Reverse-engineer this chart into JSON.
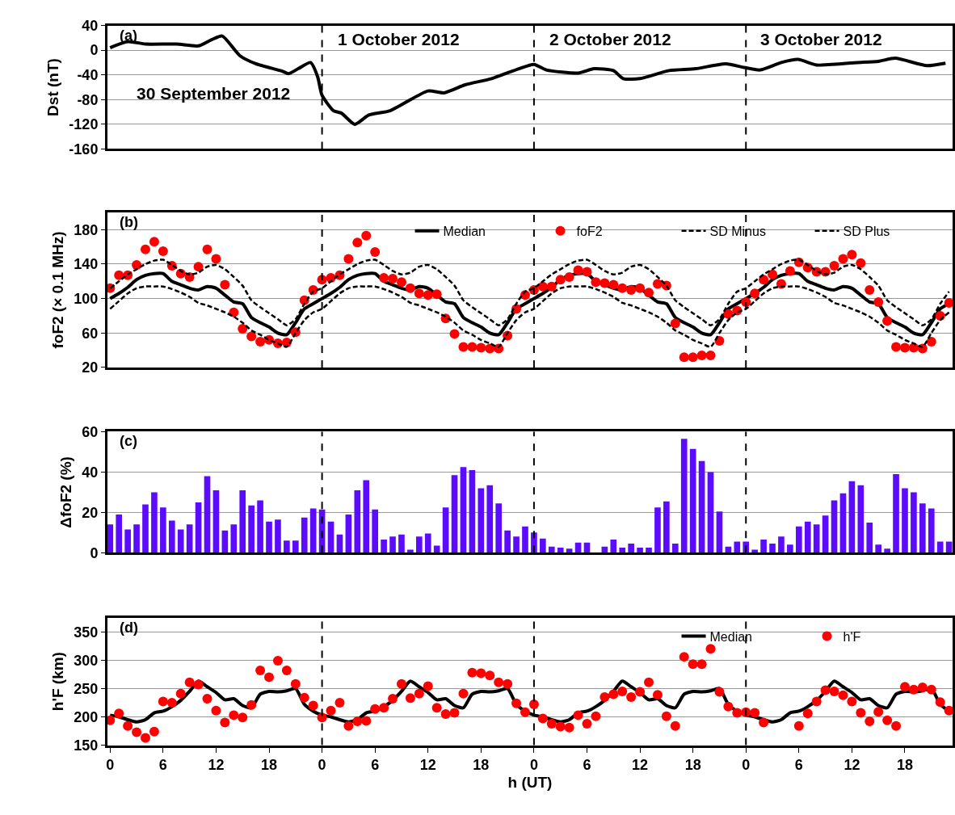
{
  "chart_data": [
    {
      "type": "line",
      "ylabel": "Dst (nT)",
      "xlim": [
        "2012-09-29T23:42",
        "2012-10-03T23:24"
      ],
      "ylim": [
        -160,
        40
      ],
      "yticks": [
        -160,
        -120,
        -80,
        -40,
        0,
        40
      ],
      "tick_labels": "y",
      "grid": "y",
      "annotations": [
        "(a)",
        "30 September 2012",
        "1 October 2012",
        "2 October 2012",
        "3 October 2012"
      ],
      "ref_lines": [
        {
          "axis": "x",
          "value": "2012-10-01T00:00",
          "color": "#000000",
          "line_style": "dashed"
        },
        {
          "axis": "x",
          "value": "2012-10-02T00:00",
          "color": "#000000",
          "line_style": "dashed"
        },
        {
          "axis": "x",
          "value": "2012-10-03T00:00",
          "color": "#000000",
          "line_style": "dashed"
        }
      ],
      "series": [
        {
          "color": "#000000",
          "line_style": "solid",
          "x": [
            "2012-09-30T00:00",
            "2012-09-30T02:00",
            "2012-09-30T04:00",
            "2012-09-30T07:30",
            "2012-09-30T10:00",
            "2012-09-30T11:30",
            "2012-09-30T12:42",
            "2012-09-30T14:42",
            "2012-09-30T16:30",
            "2012-09-30T19:30",
            "2012-09-30T20:12",
            "2012-09-30T21:18",
            "2012-09-30T22:42",
            "2012-09-30T23:30",
            "2012-10-01T00:00",
            "2012-10-01T01:18",
            "2012-10-01T02:12",
            "2012-10-01T03:42",
            "2012-10-01T05:18",
            "2012-10-01T07:42",
            "2012-10-01T12:00",
            "2012-10-01T13:48",
            "2012-10-01T16:12",
            "2012-10-01T19:12",
            "2012-10-01T22:18",
            "2012-10-02T00:00",
            "2012-10-02T01:24",
            "2012-10-02T05:00",
            "2012-10-02T06:48",
            "2012-10-02T09:00",
            "2012-10-02T10:06",
            "2012-10-02T12:00",
            "2012-10-02T15:18",
            "2012-10-02T18:18",
            "2012-10-02T21:42",
            "2012-10-02T23:48",
            "2012-10-03T01:36",
            "2012-10-03T04:00",
            "2012-10-03T05:54",
            "2012-10-03T08:00",
            "2012-10-03T12:36",
            "2012-10-03T15:00",
            "2012-10-03T16:54",
            "2012-10-03T20:30",
            "2012-10-03T22:36"
          ],
          "values": [
            4,
            14,
            10,
            10,
            7,
            17,
            23,
            -9,
            -22,
            -34,
            -38,
            -30,
            -20,
            -43,
            -73,
            -98,
            -102,
            -120,
            -105,
            -98,
            -66,
            -69,
            -56,
            -46,
            -30,
            -23,
            -32,
            -37,
            -30,
            -33,
            -46,
            -46,
            -33,
            -30,
            -22,
            -28,
            -32,
            -20,
            -15,
            -24,
            -20,
            -18,
            -13,
            -25,
            -21
          ]
        }
      ]
    },
    {
      "type": "line",
      "ylabel": "foF2 (× 0.1 MHz)",
      "xlim": [
        "2012-09-29T23:42",
        "2012-10-03T23:24"
      ],
      "ylim": [
        20,
        200
      ],
      "yticks": [
        20,
        60,
        100,
        140,
        180
      ],
      "tick_labels": "y",
      "grid": "y",
      "legend": "top right",
      "annotations": [
        "(b)"
      ],
      "ref_lines": [
        {
          "axis": "x",
          "value": "2012-10-01T00:00",
          "color": "#000000",
          "line_style": "dashed"
        },
        {
          "axis": "x",
          "value": "2012-10-02T00:00",
          "color": "#000000",
          "line_style": "dashed"
        },
        {
          "axis": "x",
          "value": "2012-10-03T00:00",
          "color": "#000000",
          "line_style": "dashed"
        }
      ],
      "x": [
        "2012-09-30T00:00",
        "2012-09-30T01:00",
        "2012-09-30T02:00",
        "2012-09-30T03:00",
        "2012-09-30T04:00",
        "2012-09-30T05:00",
        "2012-09-30T06:00",
        "2012-09-30T07:00",
        "2012-09-30T08:00",
        "2012-09-30T09:00",
        "2012-09-30T10:00",
        "2012-09-30T11:00",
        "2012-09-30T12:00",
        "2012-09-30T13:00",
        "2012-09-30T14:00",
        "2012-09-30T15:00",
        "2012-09-30T16:00",
        "2012-09-30T17:00",
        "2012-09-30T18:00",
        "2012-09-30T19:00",
        "2012-09-30T20:00",
        "2012-09-30T21:00",
        "2012-09-30T22:00",
        "2012-09-30T23:00",
        "2012-10-01T00:00",
        "2012-10-01T01:00",
        "2012-10-01T02:00",
        "2012-10-01T03:00",
        "2012-10-01T04:00",
        "2012-10-01T05:00",
        "2012-10-01T06:00",
        "2012-10-01T07:00",
        "2012-10-01T08:00",
        "2012-10-01T09:00",
        "2012-10-01T10:00",
        "2012-10-01T11:00",
        "2012-10-01T12:00",
        "2012-10-01T13:00",
        "2012-10-01T14:00",
        "2012-10-01T15:00",
        "2012-10-01T16:00",
        "2012-10-01T17:00",
        "2012-10-01T18:00",
        "2012-10-01T19:00",
        "2012-10-01T20:00",
        "2012-10-01T21:00",
        "2012-10-01T22:00",
        "2012-10-01T23:00",
        "2012-10-02T00:00",
        "2012-10-02T01:00",
        "2012-10-02T02:00",
        "2012-10-02T03:00",
        "2012-10-02T04:00",
        "2012-10-02T05:00",
        "2012-10-02T06:00",
        "2012-10-02T07:00",
        "2012-10-02T08:00",
        "2012-10-02T09:00",
        "2012-10-02T10:00",
        "2012-10-02T11:00",
        "2012-10-02T12:00",
        "2012-10-02T13:00",
        "2012-10-02T14:00",
        "2012-10-02T15:00",
        "2012-10-02T16:00",
        "2012-10-02T17:00",
        "2012-10-02T18:00",
        "2012-10-02T19:00",
        "2012-10-02T20:00",
        "2012-10-02T21:00",
        "2012-10-02T22:00",
        "2012-10-02T23:00",
        "2012-10-03T00:00",
        "2012-10-03T01:00",
        "2012-10-03T02:00",
        "2012-10-03T03:00",
        "2012-10-03T04:00",
        "2012-10-03T05:00",
        "2012-10-03T06:00",
        "2012-10-03T07:00",
        "2012-10-03T08:00",
        "2012-10-03T09:00",
        "2012-10-03T10:00",
        "2012-10-03T11:00",
        "2012-10-03T12:00",
        "2012-10-03T13:00",
        "2012-10-03T14:00",
        "2012-10-03T15:00",
        "2012-10-03T16:00",
        "2012-10-03T17:00",
        "2012-10-03T18:00",
        "2012-10-03T19:00",
        "2012-10-03T20:00",
        "2012-10-03T21:00",
        "2012-10-03T22:00",
        "2012-10-03T23:00"
      ],
      "series": [
        {
          "name": "Median",
          "color": "#000000",
          "line_style": "solid",
          "values": [
            100,
            106,
            113,
            122,
            127,
            129,
            129,
            120,
            116,
            112,
            110,
            114,
            112,
            104,
            96,
            94,
            78,
            72,
            67,
            60,
            58,
            72,
            88,
            94,
            100,
            106,
            113,
            122,
            127,
            129,
            129,
            120,
            116,
            112,
            110,
            114,
            112,
            104,
            96,
            94,
            78,
            72,
            67,
            60,
            58,
            72,
            88,
            94,
            100,
            106,
            113,
            122,
            127,
            129,
            129,
            120,
            116,
            112,
            110,
            114,
            112,
            104,
            96,
            94,
            78,
            72,
            67,
            60,
            58,
            72,
            88,
            94,
            100,
            106,
            113,
            122,
            127,
            129,
            129,
            120,
            116,
            112,
            110,
            114,
            112,
            104,
            96,
            94,
            78,
            72,
            67,
            60,
            58,
            72,
            88,
            94
          ]
        },
        {
          "name": "foF2",
          "type": "scatter",
          "marker": "circle",
          "color": "#ff0000",
          "values": [
            112,
            127,
            127,
            139,
            157,
            166,
            155,
            138,
            129,
            125,
            137,
            157,
            146,
            116,
            84,
            65,
            56,
            50,
            52,
            48,
            49,
            61,
            98,
            110,
            122,
            124,
            127,
            146,
            165,
            173,
            154,
            124,
            123,
            119,
            112,
            106,
            104,
            105,
            77,
            59,
            44,
            44,
            43,
            42,
            42,
            57,
            88,
            104,
            110,
            114,
            114,
            122,
            125,
            133,
            131,
            119,
            118,
            116,
            112,
            110,
            112,
            107,
            117,
            115,
            71,
            32,
            32,
            34,
            34,
            51,
            82,
            86,
            96,
            106,
            122,
            128,
            117,
            132,
            142,
            136,
            131,
            131,
            138,
            146,
            151,
            141,
            110,
            96,
            74,
            44,
            43,
            43,
            42,
            50,
            80,
            95
          ]
        },
        {
          "name": "SD Minus",
          "color": "#000000",
          "line_style": "dashed",
          "values": [
            88,
            97,
            106,
            112,
            114,
            114,
            114,
            111,
            107,
            102,
            95,
            92,
            88,
            84,
            79,
            72,
            63,
            58,
            52,
            48,
            44,
            60,
            75,
            84,
            88,
            97,
            106,
            112,
            114,
            114,
            114,
            111,
            107,
            102,
            95,
            92,
            88,
            84,
            79,
            72,
            63,
            58,
            52,
            48,
            44,
            60,
            75,
            84,
            88,
            97,
            106,
            112,
            114,
            114,
            114,
            111,
            107,
            102,
            95,
            92,
            88,
            84,
            79,
            72,
            63,
            58,
            52,
            48,
            44,
            60,
            75,
            84,
            88,
            97,
            106,
            112,
            114,
            114,
            114,
            111,
            107,
            102,
            95,
            92,
            88,
            84,
            79,
            72,
            63,
            58,
            52,
            48,
            44,
            60,
            75,
            84
          ]
        },
        {
          "name": "SD Plus",
          "color": "#000000",
          "line_style": "dashed",
          "values": [
            112,
            120,
            128,
            134,
            140,
            144,
            145,
            139,
            132,
            128,
            130,
            137,
            139,
            134,
            125,
            115,
            98,
            90,
            83,
            76,
            69,
            76,
            94,
            108,
            112,
            120,
            128,
            134,
            140,
            144,
            145,
            139,
            132,
            128,
            130,
            137,
            139,
            134,
            125,
            115,
            98,
            90,
            83,
            76,
            69,
            76,
            94,
            108,
            112,
            120,
            128,
            134,
            140,
            144,
            145,
            139,
            132,
            128,
            130,
            137,
            139,
            134,
            125,
            115,
            98,
            90,
            83,
            76,
            69,
            76,
            94,
            108,
            112,
            120,
            128,
            134,
            140,
            144,
            145,
            139,
            132,
            128,
            130,
            137,
            139,
            134,
            125,
            115,
            98,
            90,
            83,
            76,
            69,
            76,
            94,
            108
          ]
        }
      ]
    },
    {
      "type": "bar",
      "ylabel": "ΔfoF2 (%)",
      "xlim": [
        "2012-09-29T23:42",
        "2012-10-03T23:24"
      ],
      "ylim": [
        0,
        60
      ],
      "yticks": [
        0,
        20,
        40,
        60
      ],
      "tick_labels": "y",
      "grid": "y",
      "annotations": [
        "(c)"
      ],
      "ref_lines": [
        {
          "axis": "x",
          "value": "2012-10-01T00:00",
          "color": "#000000",
          "line_style": "dashed"
        },
        {
          "axis": "x",
          "value": "2012-10-02T00:00",
          "color": "#000000",
          "line_style": "dashed"
        },
        {
          "axis": "x",
          "value": "2012-10-03T00:00",
          "color": "#000000",
          "line_style": "dashed"
        }
      ],
      "x": [
        "2012-09-30T00:00",
        "2012-09-30T01:00",
        "2012-09-30T02:00",
        "2012-09-30T03:00",
        "2012-09-30T04:00",
        "2012-09-30T05:00",
        "2012-09-30T06:00",
        "2012-09-30T07:00",
        "2012-09-30T08:00",
        "2012-09-30T09:00",
        "2012-09-30T10:00",
        "2012-09-30T11:00",
        "2012-09-30T12:00",
        "2012-09-30T13:00",
        "2012-09-30T14:00",
        "2012-09-30T15:00",
        "2012-09-30T16:00",
        "2012-09-30T17:00",
        "2012-09-30T18:00",
        "2012-09-30T19:00",
        "2012-09-30T20:00",
        "2012-09-30T21:00",
        "2012-09-30T22:00",
        "2012-09-30T23:00",
        "2012-10-01T00:00",
        "2012-10-01T01:00",
        "2012-10-01T02:00",
        "2012-10-01T03:00",
        "2012-10-01T04:00",
        "2012-10-01T05:00",
        "2012-10-01T06:00",
        "2012-10-01T07:00",
        "2012-10-01T08:00",
        "2012-10-01T09:00",
        "2012-10-01T10:00",
        "2012-10-01T11:00",
        "2012-10-01T12:00",
        "2012-10-01T13:00",
        "2012-10-01T14:00",
        "2012-10-01T15:00",
        "2012-10-01T16:00",
        "2012-10-01T17:00",
        "2012-10-01T18:00",
        "2012-10-01T19:00",
        "2012-10-01T20:00",
        "2012-10-01T21:00",
        "2012-10-01T22:00",
        "2012-10-01T23:00",
        "2012-10-02T00:00",
        "2012-10-02T01:00",
        "2012-10-02T02:00",
        "2012-10-02T03:00",
        "2012-10-02T04:00",
        "2012-10-02T05:00",
        "2012-10-02T06:00",
        "2012-10-02T07:00",
        "2012-10-02T08:00",
        "2012-10-02T09:00",
        "2012-10-02T10:00",
        "2012-10-02T11:00",
        "2012-10-02T12:00",
        "2012-10-02T13:00",
        "2012-10-02T14:00",
        "2012-10-02T15:00",
        "2012-10-02T16:00",
        "2012-10-02T17:00",
        "2012-10-02T18:00",
        "2012-10-02T19:00",
        "2012-10-02T20:00",
        "2012-10-02T21:00",
        "2012-10-02T22:00",
        "2012-10-02T23:00",
        "2012-10-03T00:00",
        "2012-10-03T01:00",
        "2012-10-03T02:00",
        "2012-10-03T03:00",
        "2012-10-03T04:00",
        "2012-10-03T05:00",
        "2012-10-03T06:00",
        "2012-10-03T07:00",
        "2012-10-03T08:00",
        "2012-10-03T09:00",
        "2012-10-03T10:00",
        "2012-10-03T11:00",
        "2012-10-03T12:00",
        "2012-10-03T13:00",
        "2012-10-03T14:00",
        "2012-10-03T15:00",
        "2012-10-03T16:00",
        "2012-10-03T17:00",
        "2012-10-03T18:00",
        "2012-10-03T19:00",
        "2012-10-03T20:00",
        "2012-10-03T21:00",
        "2012-10-03T22:00",
        "2012-10-03T23:00"
      ],
      "series": [
        {
          "color": "#5b0cff",
          "values": [
            14,
            19,
            11.5,
            14,
            24,
            30,
            22.5,
            16,
            11.5,
            14,
            25,
            38,
            31,
            11,
            14,
            31,
            23.5,
            26,
            15.5,
            16.5,
            6,
            6,
            17.5,
            22,
            21.5,
            15.5,
            9,
            19,
            31,
            36,
            21.5,
            6.5,
            8,
            9,
            1.5,
            8,
            9.5,
            3.5,
            22.5,
            38.5,
            42.5,
            41,
            32,
            33.5,
            24.5,
            11,
            8,
            13,
            10,
            7,
            3,
            2.5,
            2,
            5,
            5,
            0,
            3,
            6.5,
            2.5,
            4.5,
            2.5,
            2.5,
            22.5,
            25.5,
            4.5,
            56.5,
            51.5,
            45.5,
            40,
            20.5,
            3,
            5.5,
            5.5,
            1.5,
            6.5,
            4.5,
            8,
            4,
            13,
            15.5,
            14,
            18.5,
            26,
            29.5,
            35.5,
            33.5,
            15,
            4,
            2,
            39,
            32,
            30,
            24.5,
            22,
            5.5,
            5.5
          ]
        }
      ]
    },
    {
      "type": "line",
      "ylabel": "h'F (km)",
      "xlabel": "h (UT)",
      "xlim": [
        "2012-09-29T23:42",
        "2012-10-03T23:24"
      ],
      "ylim": [
        150,
        375
      ],
      "yticks": [
        150,
        200,
        250,
        300,
        350
      ],
      "xticks": [
        {
          "value": "2012-09-30T00:00",
          "label": "0"
        },
        {
          "value": "2012-09-30T06:00",
          "label": "6"
        },
        {
          "value": "2012-09-30T12:00",
          "label": "12"
        },
        {
          "value": "2012-09-30T18:00",
          "label": "18"
        },
        {
          "value": "2012-10-01T00:00",
          "label": "0"
        },
        {
          "value": "2012-10-01T06:00",
          "label": "6"
        },
        {
          "value": "2012-10-01T12:00",
          "label": "12"
        },
        {
          "value": "2012-10-01T18:00",
          "label": "18"
        },
        {
          "value": "2012-10-02T00:00",
          "label": "0"
        },
        {
          "value": "2012-10-02T06:00",
          "label": "6"
        },
        {
          "value": "2012-10-02T12:00",
          "label": "12"
        },
        {
          "value": "2012-10-02T18:00",
          "label": "18"
        },
        {
          "value": "2012-10-03T00:00",
          "label": "0"
        },
        {
          "value": "2012-10-03T06:00",
          "label": "6"
        },
        {
          "value": "2012-10-03T12:00",
          "label": "12"
        },
        {
          "value": "2012-10-03T18:00",
          "label": "18"
        }
      ],
      "grid": "y",
      "legend": "top right",
      "annotations": [
        "(d)"
      ],
      "ref_lines": [
        {
          "axis": "x",
          "value": "2012-10-01T00:00",
          "color": "#000000",
          "line_style": "dashed"
        },
        {
          "axis": "x",
          "value": "2012-10-02T00:00",
          "color": "#000000",
          "line_style": "dashed"
        },
        {
          "axis": "x",
          "value": "2012-10-03T00:00",
          "color": "#000000",
          "line_style": "dashed"
        }
      ],
      "x": [
        "2012-09-30T00:00",
        "2012-09-30T01:00",
        "2012-09-30T02:00",
        "2012-09-30T03:00",
        "2012-09-30T04:00",
        "2012-09-30T05:00",
        "2012-09-30T06:00",
        "2012-09-30T07:00",
        "2012-09-30T08:00",
        "2012-09-30T09:00",
        "2012-09-30T10:00",
        "2012-09-30T11:00",
        "2012-09-30T12:00",
        "2012-09-30T13:00",
        "2012-09-30T14:00",
        "2012-09-30T15:00",
        "2012-09-30T16:00",
        "2012-09-30T17:00",
        "2012-09-30T18:00",
        "2012-09-30T19:00",
        "2012-09-30T20:00",
        "2012-09-30T21:00",
        "2012-09-30T22:00",
        "2012-09-30T23:00",
        "2012-10-01T00:00",
        "2012-10-01T01:00",
        "2012-10-01T02:00",
        "2012-10-01T03:00",
        "2012-10-01T04:00",
        "2012-10-01T05:00",
        "2012-10-01T06:00",
        "2012-10-01T07:00",
        "2012-10-01T08:00",
        "2012-10-01T09:00",
        "2012-10-01T10:00",
        "2012-10-01T11:00",
        "2012-10-01T12:00",
        "2012-10-01T13:00",
        "2012-10-01T14:00",
        "2012-10-01T15:00",
        "2012-10-01T16:00",
        "2012-10-01T17:00",
        "2012-10-01T18:00",
        "2012-10-01T19:00",
        "2012-10-01T20:00",
        "2012-10-01T21:00",
        "2012-10-01T22:00",
        "2012-10-01T23:00",
        "2012-10-02T00:00",
        "2012-10-02T01:00",
        "2012-10-02T02:00",
        "2012-10-02T03:00",
        "2012-10-02T04:00",
        "2012-10-02T05:00",
        "2012-10-02T06:00",
        "2012-10-02T07:00",
        "2012-10-02T08:00",
        "2012-10-02T09:00",
        "2012-10-02T10:00",
        "2012-10-02T11:00",
        "2012-10-02T12:00",
        "2012-10-02T13:00",
        "2012-10-02T14:00",
        "2012-10-02T15:00",
        "2012-10-02T16:00",
        "2012-10-02T17:00",
        "2012-10-02T18:00",
        "2012-10-02T19:00",
        "2012-10-02T20:00",
        "2012-10-02T21:00",
        "2012-10-02T22:00",
        "2012-10-02T23:00",
        "2012-10-03T00:00",
        "2012-10-03T01:00",
        "2012-10-03T02:00",
        "2012-10-03T03:00",
        "2012-10-03T04:00",
        "2012-10-03T05:00",
        "2012-10-03T06:00",
        "2012-10-03T07:00",
        "2012-10-03T08:00",
        "2012-10-03T09:00",
        "2012-10-03T10:00",
        "2012-10-03T11:00",
        "2012-10-03T12:00",
        "2012-10-03T13:00",
        "2012-10-03T14:00",
        "2012-10-03T15:00",
        "2012-10-03T16:00",
        "2012-10-03T17:00",
        "2012-10-03T18:00",
        "2012-10-03T19:00",
        "2012-10-03T20:00",
        "2012-10-03T21:00",
        "2012-10-03T22:00",
        "2012-10-03T23:00"
      ],
      "series": [
        {
          "name": "Median",
          "color": "#000000",
          "line_style": "solid",
          "values": [
            203,
            200,
            195,
            191,
            195,
            207,
            210,
            218,
            229,
            245,
            263,
            253,
            243,
            230,
            232,
            220,
            216,
            240,
            245,
            244,
            246,
            250,
            222,
            210,
            203,
            200,
            195,
            191,
            195,
            207,
            210,
            218,
            229,
            245,
            263,
            253,
            243,
            230,
            232,
            220,
            216,
            240,
            245,
            244,
            246,
            250,
            222,
            210,
            203,
            200,
            195,
            191,
            195,
            207,
            210,
            218,
            229,
            245,
            263,
            253,
            243,
            230,
            232,
            220,
            216,
            240,
            245,
            244,
            246,
            250,
            222,
            210,
            203,
            200,
            195,
            191,
            195,
            207,
            210,
            218,
            229,
            245,
            263,
            253,
            243,
            230,
            232,
            220,
            216,
            240,
            245,
            244,
            246,
            250,
            222,
            210
          ]
        },
        {
          "name": "h'F",
          "type": "scatter",
          "marker": "circle",
          "color": "#ff0000",
          "values": [
            194,
            206,
            184,
            173,
            163,
            174,
            227,
            225,
            241,
            261,
            257,
            232,
            211,
            190,
            203,
            199,
            221,
            282,
            270,
            299,
            282,
            258,
            234,
            220,
            199,
            211,
            225,
            184,
            192,
            193,
            214,
            216,
            232,
            258,
            233,
            241,
            254,
            216,
            205,
            207,
            241,
            278,
            277,
            273,
            261,
            258,
            224,
            208,
            222,
            197,
            188,
            183,
            181,
            203,
            188,
            201,
            235,
            240,
            245,
            235,
            244,
            261,
            239,
            201,
            184,
            306,
            293,
            293,
            320,
            244,
            218,
            207,
            208,
            207,
            190,
            null,
            null,
            null,
            184,
            206,
            227,
            247,
            245,
            238,
            227,
            207,
            192,
            209,
            194,
            184,
            253,
            248,
            252,
            248,
            226,
            211
          ]
        }
      ]
    }
  ]
}
